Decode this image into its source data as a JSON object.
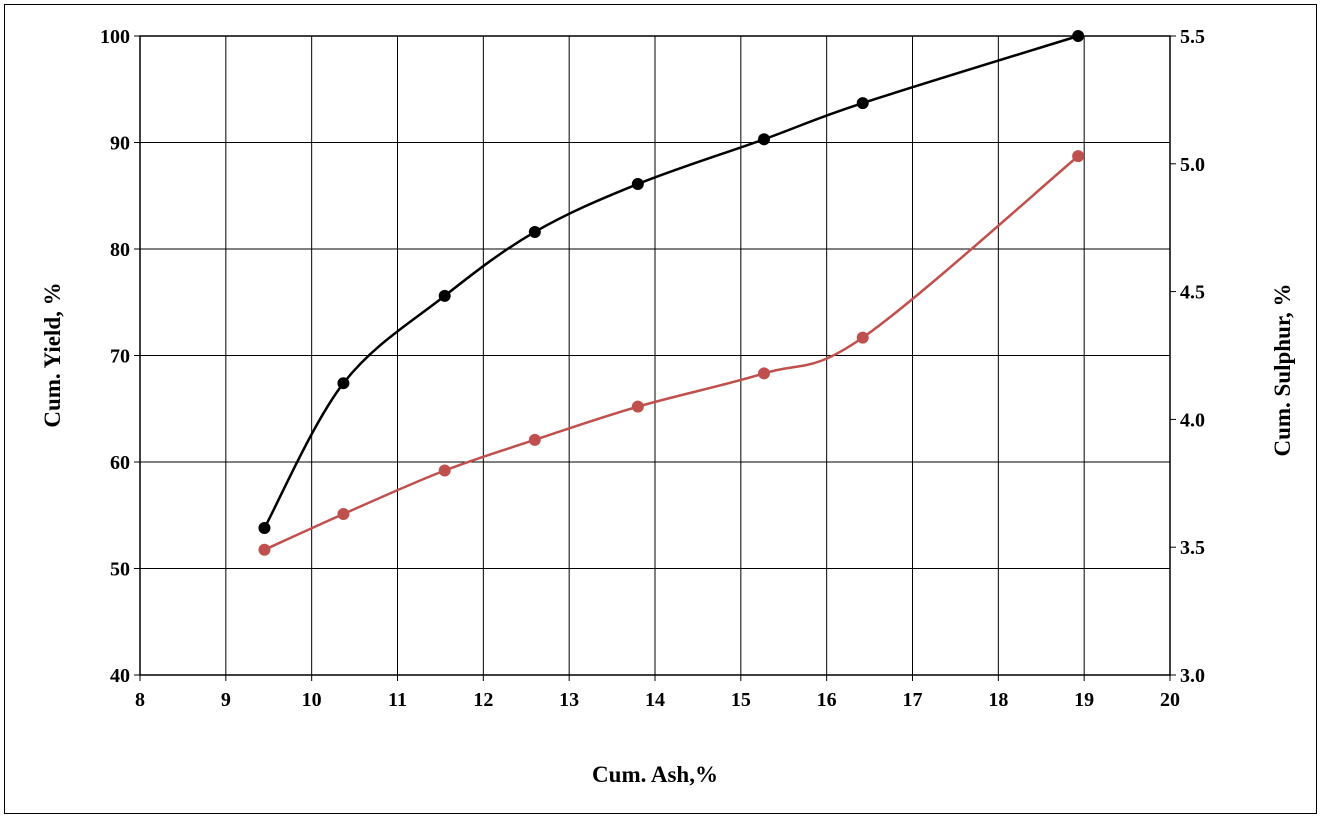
{
  "chart_data": {
    "type": "line",
    "title": "",
    "xlabel": "Cum. Ash,%",
    "ylabel_left": "Cum. Yield, %",
    "ylabel_right": "Cum. Sulphur, %",
    "xlim": [
      8,
      20
    ],
    "ylim_left": [
      40,
      100
    ],
    "ylim_right": [
      3.0,
      5.5
    ],
    "x_ticks": [
      "8",
      "9",
      "10",
      "11",
      "12",
      "13",
      "14",
      "15",
      "16",
      "17",
      "18",
      "19",
      "20"
    ],
    "y_left_ticks": [
      "40",
      "50",
      "60",
      "70",
      "80",
      "90",
      "100"
    ],
    "y_right_ticks": [
      "3.0",
      "3.5",
      "4.0",
      "4.5",
      "5.0",
      "5.5"
    ],
    "grid": true,
    "legend": "none",
    "series": [
      {
        "axis": "left",
        "color": "#000000",
        "x": [
          9.45,
          10.37,
          11.55,
          12.6,
          13.8,
          15.27,
          16.42,
          18.93
        ],
        "y": [
          53.8,
          67.4,
          75.6,
          81.6,
          86.1,
          90.3,
          93.7,
          100.0
        ]
      },
      {
        "axis": "right",
        "color": "#c0504d",
        "x": [
          9.45,
          10.37,
          11.55,
          12.6,
          13.8,
          15.27,
          16.42,
          18.93
        ],
        "y": [
          3.49,
          3.63,
          3.8,
          3.92,
          4.05,
          4.18,
          4.32,
          5.03
        ]
      }
    ]
  }
}
